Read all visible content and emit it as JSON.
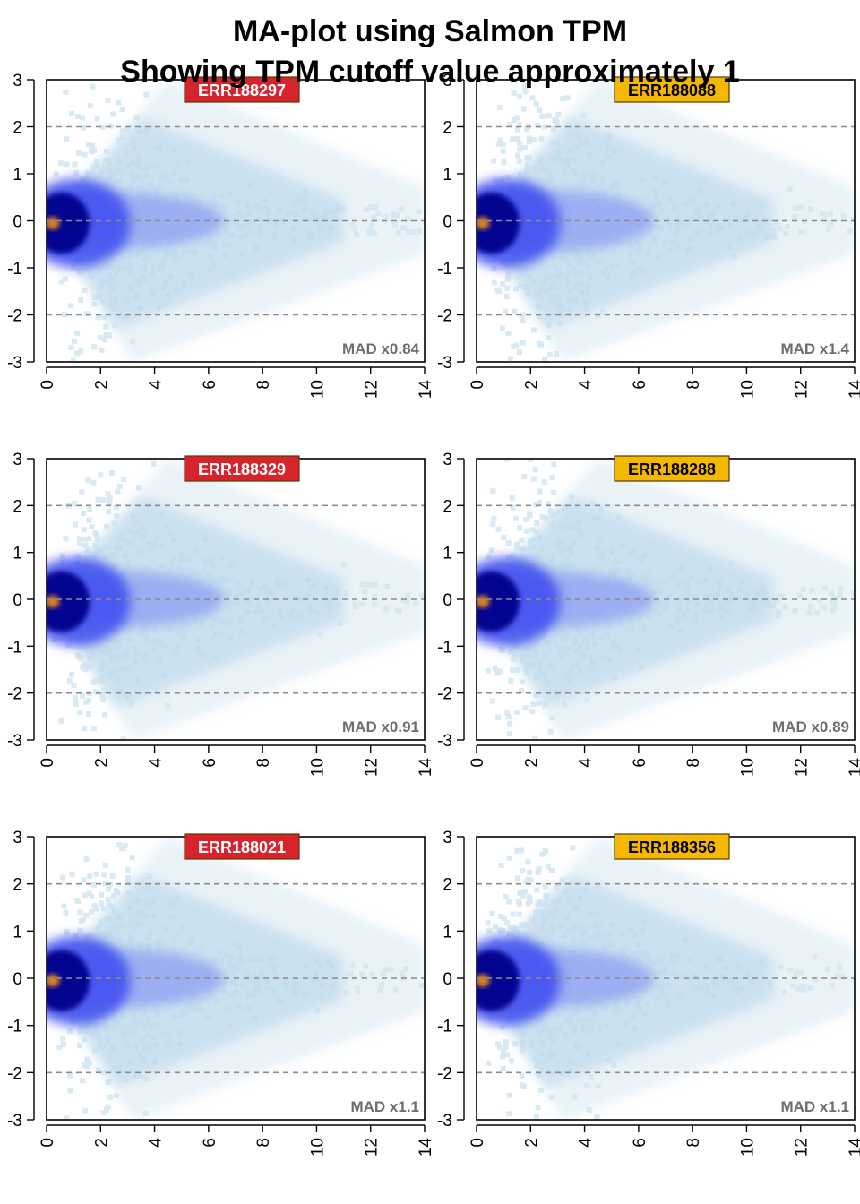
{
  "title": "MA-plot using Salmon TPM",
  "subtitle": "Showing TPM cutoff value approximately 1",
  "colors": {
    "red_label": "#d7232c",
    "orange_label": "#f5b800",
    "density_low": "#d6e8f2",
    "density_mid": "#3c4cf0",
    "density_high": "#00008b",
    "peak": "#e8871c",
    "reference_line": "#8c8c8c",
    "mad_text": "#6e6e6e"
  },
  "chart_data": [
    {
      "type": "scatter",
      "sample": "ERR188297",
      "label_color": "red",
      "annotation": "MAD x0.84",
      "xlim": [
        0,
        14
      ],
      "ylim": [
        -3,
        3
      ],
      "x_ticks": [
        "0",
        "2",
        "4",
        "6",
        "8",
        "10",
        "12",
        "14"
      ],
      "y_ticks": [
        "3",
        "2",
        "1",
        "0",
        "-1",
        "-2",
        "-3"
      ],
      "reference_lines_y": [
        2,
        0,
        -2
      ],
      "density_spread_scale": 0.84,
      "grid": false
    },
    {
      "type": "scatter",
      "sample": "ERR188088",
      "label_color": "orange",
      "annotation": "MAD x1.4",
      "xlim": [
        0,
        14
      ],
      "ylim": [
        -3,
        3
      ],
      "x_ticks": [
        "0",
        "2",
        "4",
        "6",
        "8",
        "10",
        "12",
        "14"
      ],
      "y_ticks": [
        "3",
        "2",
        "1",
        "0",
        "-1",
        "-2",
        "-3"
      ],
      "reference_lines_y": [
        2,
        0,
        -2
      ],
      "density_spread_scale": 1.4,
      "grid": false
    },
    {
      "type": "scatter",
      "sample": "ERR188329",
      "label_color": "red",
      "annotation": "MAD x0.91",
      "xlim": [
        0,
        14
      ],
      "ylim": [
        -3,
        3
      ],
      "x_ticks": [
        "0",
        "2",
        "4",
        "6",
        "8",
        "10",
        "12",
        "14"
      ],
      "y_ticks": [
        "3",
        "2",
        "1",
        "0",
        "-1",
        "-2",
        "-3"
      ],
      "reference_lines_y": [
        2,
        0,
        -2
      ],
      "density_spread_scale": 0.91,
      "grid": false
    },
    {
      "type": "scatter",
      "sample": "ERR188288",
      "label_color": "orange",
      "annotation": "MAD x0.89",
      "xlim": [
        0,
        14
      ],
      "ylim": [
        -3,
        3
      ],
      "x_ticks": [
        "0",
        "2",
        "4",
        "6",
        "8",
        "10",
        "12",
        "14"
      ],
      "y_ticks": [
        "3",
        "2",
        "1",
        "0",
        "-1",
        "-2",
        "-3"
      ],
      "reference_lines_y": [
        2,
        0,
        -2
      ],
      "density_spread_scale": 0.89,
      "grid": false
    },
    {
      "type": "scatter",
      "sample": "ERR188021",
      "label_color": "red",
      "annotation": "MAD x1.1",
      "xlim": [
        0,
        14
      ],
      "ylim": [
        -3,
        3
      ],
      "x_ticks": [
        "0",
        "2",
        "4",
        "6",
        "8",
        "10",
        "12",
        "14"
      ],
      "y_ticks": [
        "3",
        "2",
        "1",
        "0",
        "-1",
        "-2",
        "-3"
      ],
      "reference_lines_y": [
        2,
        0,
        -2
      ],
      "density_spread_scale": 1.1,
      "grid": false
    },
    {
      "type": "scatter",
      "sample": "ERR188356",
      "label_color": "orange",
      "annotation": "MAD x1.1",
      "xlim": [
        0,
        14
      ],
      "ylim": [
        -3,
        3
      ],
      "x_ticks": [
        "0",
        "2",
        "4",
        "6",
        "8",
        "10",
        "12",
        "14"
      ],
      "y_ticks": [
        "3",
        "2",
        "1",
        "0",
        "-1",
        "-2",
        "-3"
      ],
      "reference_lines_y": [
        2,
        0,
        -2
      ],
      "density_spread_scale": 1.1,
      "grid": false
    }
  ]
}
